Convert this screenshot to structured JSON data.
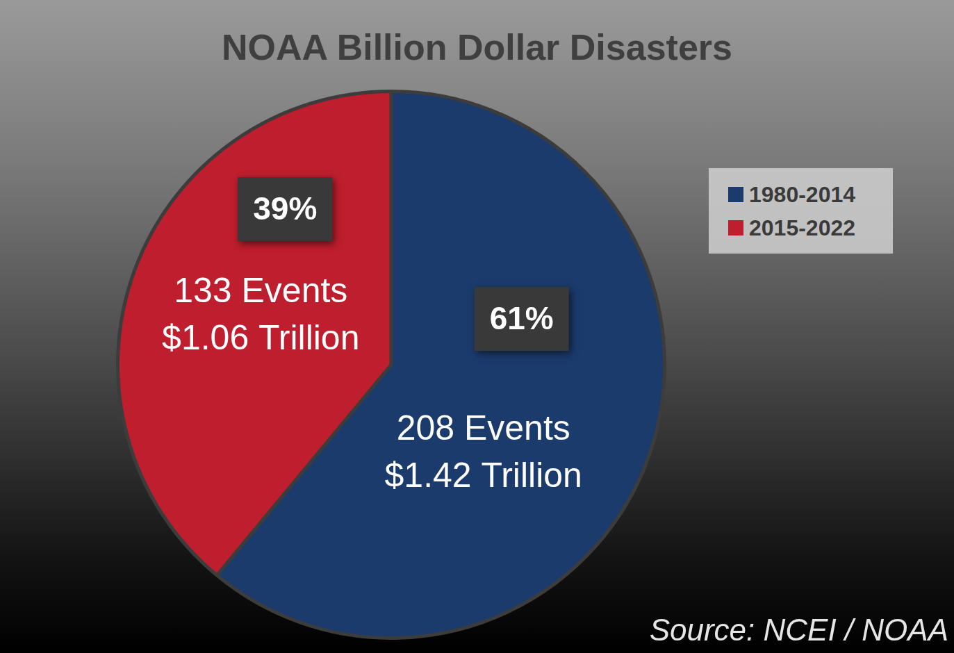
{
  "chart_data": {
    "type": "pie",
    "title": "NOAA Billion Dollar Disasters",
    "categories": [
      "1980-2014",
      "2015-2022"
    ],
    "values": [
      61,
      39
    ],
    "value_labels": [
      "61%",
      "39%"
    ],
    "events": [
      208,
      133
    ],
    "event_labels": [
      "208 Events",
      "133 Events"
    ],
    "costs": [
      1.42,
      1.06
    ],
    "cost_labels": [
      "$1.42 Trillion",
      "$1.06 Trillion"
    ],
    "colors": [
      "#1b3b6d",
      "#be1e2d"
    ],
    "data_labels": true,
    "legend": "right",
    "source": "Source: NCEI / NOAA"
  }
}
